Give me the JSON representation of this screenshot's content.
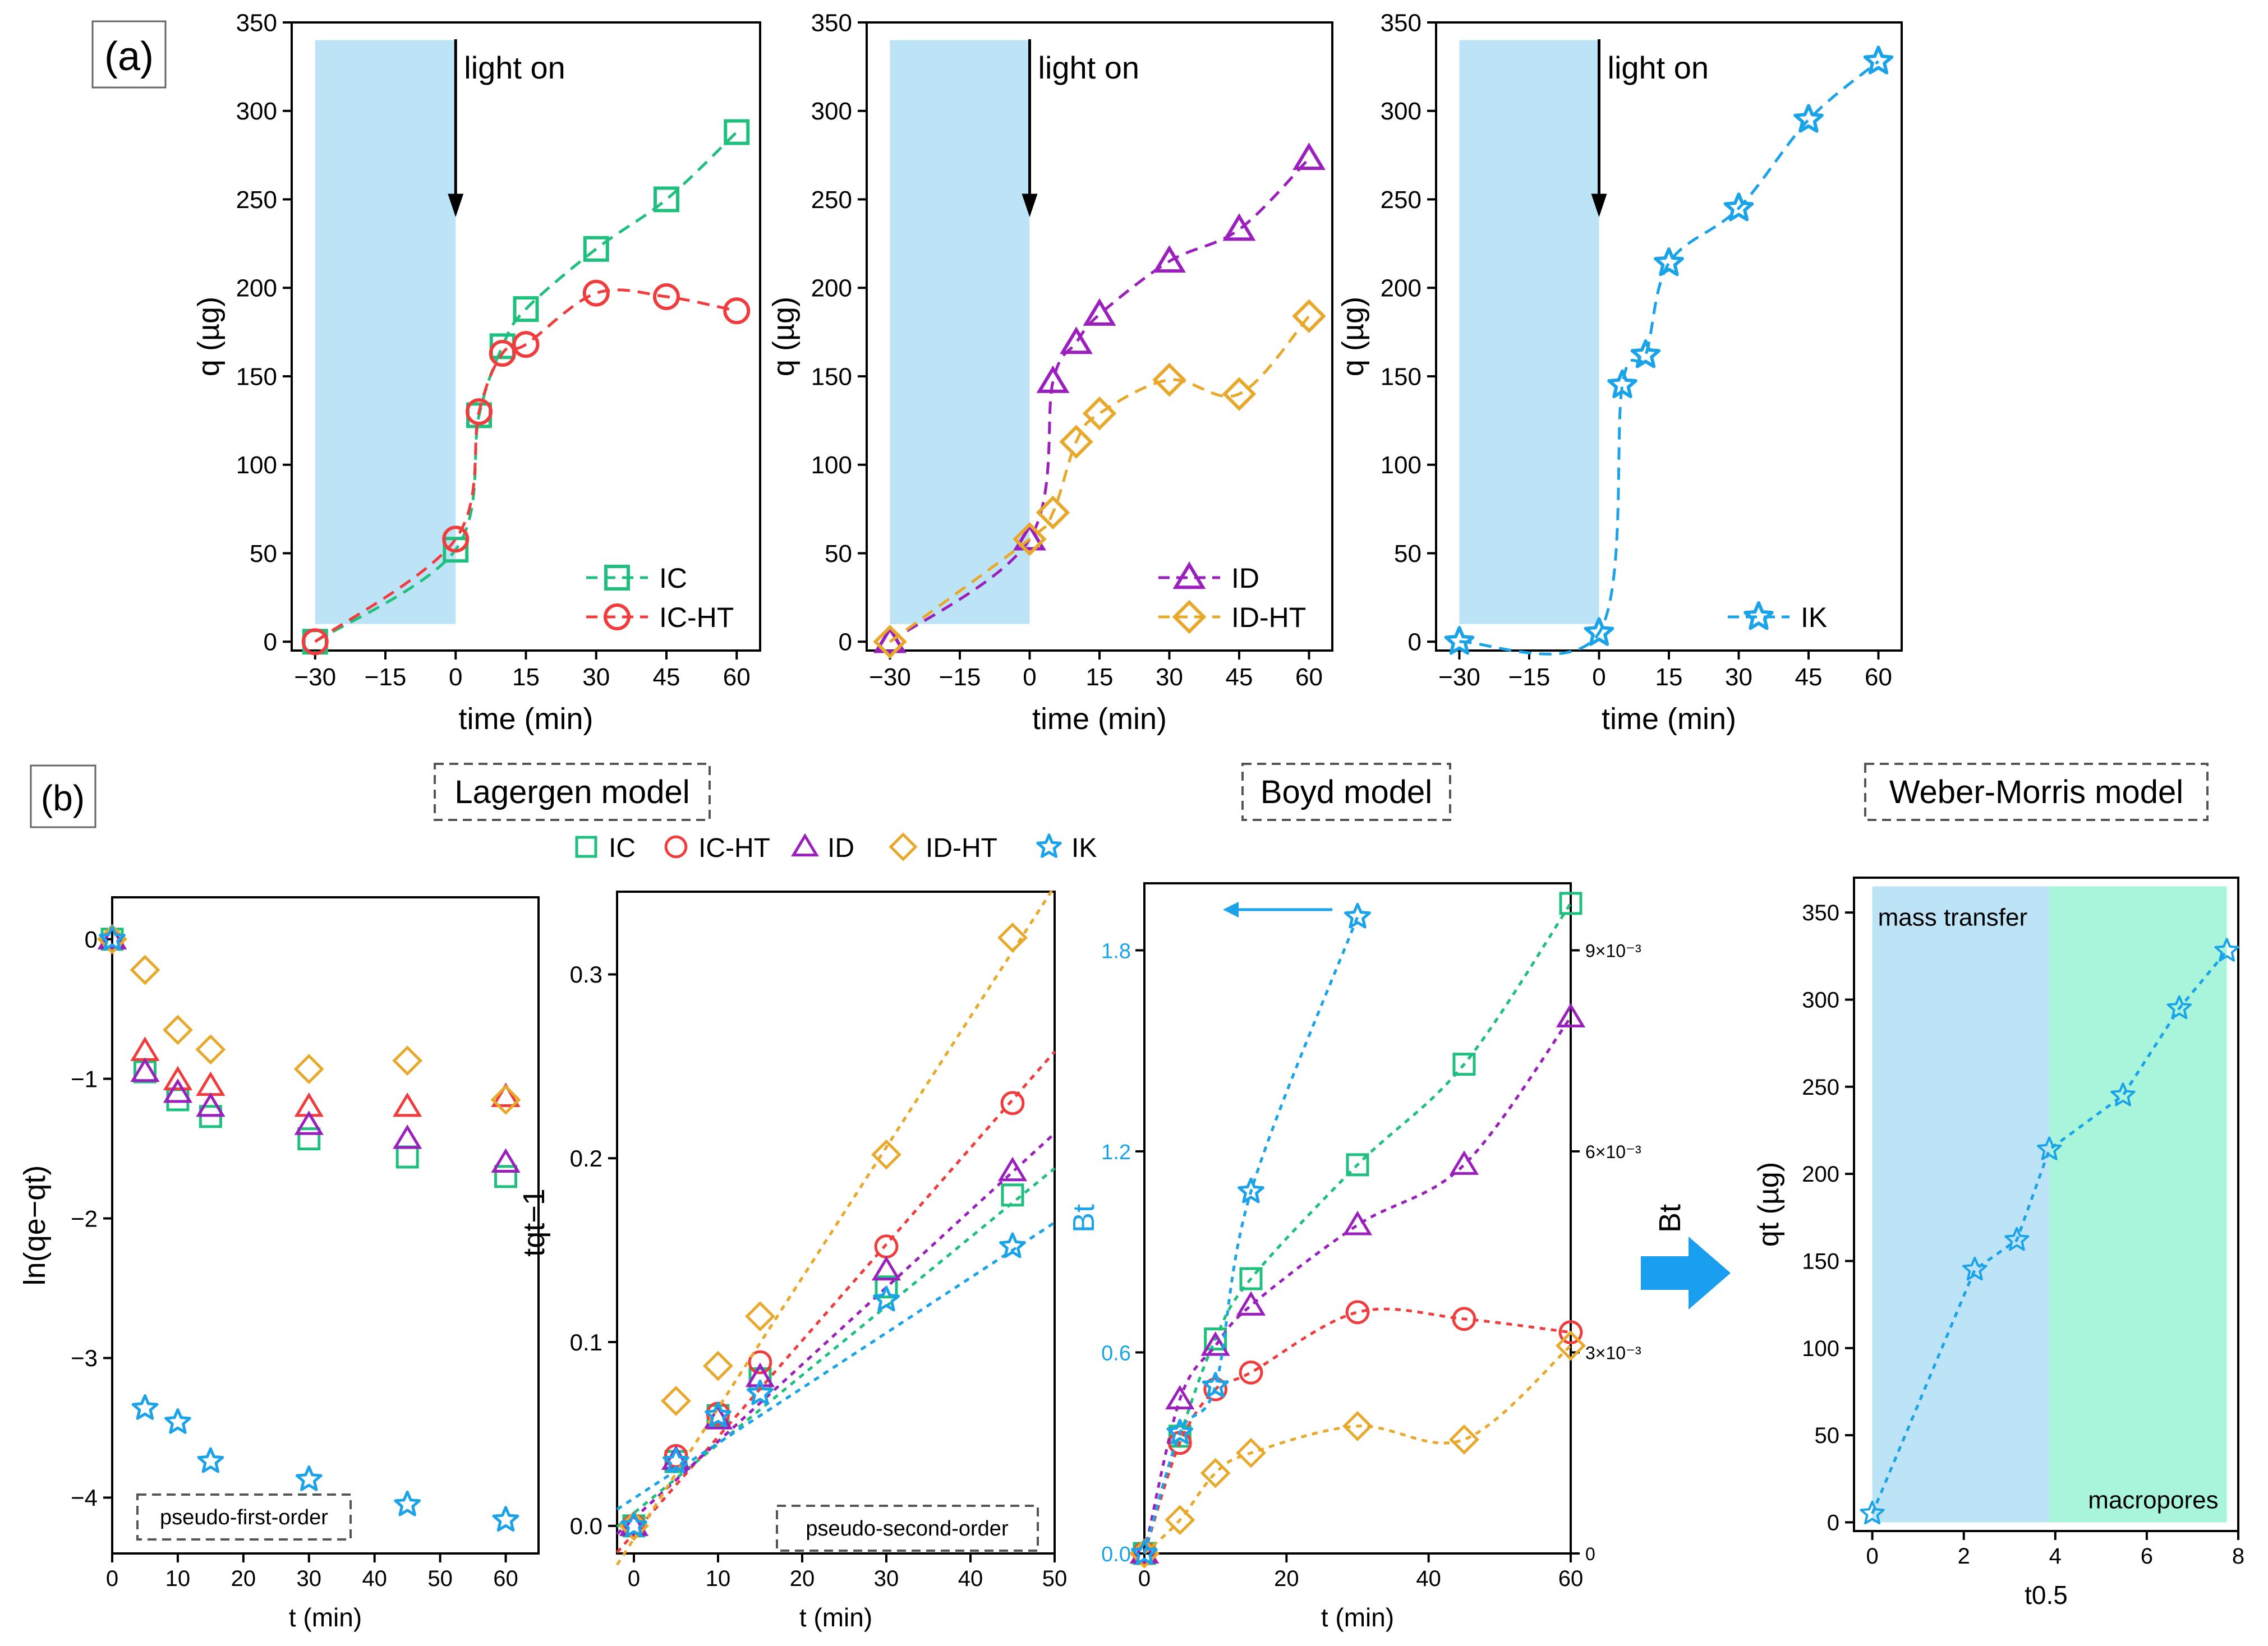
{
  "colors": {
    "IC": "#1fbf7e",
    "IC-HT": "#f03c3c",
    "ID": "#9a1fbd",
    "ID-HT": "#e8a92a",
    "IK": "#1aa3e8",
    "shade_blue": "#bde3f7",
    "shade_green": "#a9f5dc"
  },
  "panel_labels": {
    "a": "(a)",
    "b": "(b)"
  },
  "model_titles": {
    "lagergen": "Lagergen model",
    "boyd": "Boyd model",
    "weber": "Weber-Morris model"
  },
  "legend_top": [
    "IC",
    "IC-HT",
    "ID",
    "ID-HT",
    "IK"
  ],
  "chart_data": [
    {
      "id": "a1",
      "type": "line",
      "xlabel": "time (min)",
      "ylabel": "q (µg)",
      "xlim": [
        -35,
        65
      ],
      "ylim": [
        -5,
        350
      ],
      "xticks": [
        -30,
        -15,
        0,
        15,
        30,
        45,
        60
      ],
      "yticks": [
        0,
        50,
        100,
        150,
        200,
        250,
        300,
        350
      ],
      "annotation": "light on",
      "series": [
        {
          "name": "IC",
          "marker": "square",
          "x": [
            -30,
            0,
            5,
            10,
            15,
            30,
            45,
            60
          ],
          "y": [
            0,
            52,
            128,
            167,
            188,
            222,
            250,
            288
          ]
        },
        {
          "name": "IC-HT",
          "marker": "circle",
          "x": [
            -30,
            0,
            5,
            10,
            15,
            30,
            45,
            60
          ],
          "y": [
            0,
            58,
            130,
            163,
            168,
            197,
            195,
            187
          ]
        }
      ]
    },
    {
      "id": "a2",
      "type": "line",
      "xlabel": "time (min)",
      "ylabel": "q (µg)",
      "xlim": [
        -35,
        65
      ],
      "ylim": [
        -5,
        350
      ],
      "xticks": [
        -30,
        -15,
        0,
        15,
        30,
        45,
        60
      ],
      "yticks": [
        0,
        50,
        100,
        150,
        200,
        250,
        300,
        350
      ],
      "annotation": "light on",
      "series": [
        {
          "name": "ID",
          "marker": "triangle",
          "x": [
            -30,
            0,
            5,
            10,
            15,
            30,
            45,
            60
          ],
          "y": [
            0,
            58,
            147,
            169,
            185,
            215,
            233,
            273
          ]
        },
        {
          "name": "ID-HT",
          "marker": "diamond",
          "x": [
            -30,
            0,
            5,
            10,
            15,
            30,
            45,
            60
          ],
          "y": [
            0,
            58,
            73,
            113,
            129,
            148,
            140,
            184
          ]
        }
      ]
    },
    {
      "id": "a3",
      "type": "line",
      "xlabel": "time (min)",
      "ylabel": "q (µg)",
      "xlim": [
        -35,
        65
      ],
      "ylim": [
        -5,
        350
      ],
      "xticks": [
        -30,
        -15,
        0,
        15,
        30,
        45,
        60
      ],
      "yticks": [
        0,
        50,
        100,
        150,
        200,
        250,
        300,
        350
      ],
      "annotation": "light on",
      "series": [
        {
          "name": "IK",
          "marker": "star",
          "x": [
            -30,
            0,
            5,
            10,
            15,
            30,
            45,
            60
          ],
          "y": [
            0,
            5,
            145,
            162,
            214,
            245,
            295,
            328
          ]
        }
      ]
    },
    {
      "id": "b1",
      "type": "scatter",
      "xlabel": "t (min)",
      "ylabel": "ln(qe−qt)",
      "xlim": [
        0,
        65
      ],
      "ylim": [
        -4.4,
        0.3
      ],
      "xticks": [
        0,
        10,
        20,
        30,
        40,
        50,
        60
      ],
      "yticks": [
        0,
        -1,
        -2,
        -3,
        -4
      ],
      "box_label": "pseudo-first-order",
      "series": [
        {
          "name": "IC",
          "marker": "square",
          "x": [
            0,
            5,
            10,
            15,
            30,
            45,
            60
          ],
          "y": [
            0,
            -0.95,
            -1.15,
            -1.27,
            -1.43,
            -1.56,
            -1.7
          ]
        },
        {
          "name": "IC-HT",
          "marker": "triangle-red",
          "x": [
            0,
            5,
            10,
            15,
            30,
            45,
            60
          ],
          "y": [
            0,
            -0.8,
            -1.01,
            -1.05,
            -1.2,
            -1.2,
            -1.13
          ]
        },
        {
          "name": "ID",
          "marker": "triangle",
          "x": [
            0,
            5,
            10,
            15,
            30,
            45,
            60
          ],
          "y": [
            0,
            -0.95,
            -1.1,
            -1.2,
            -1.33,
            -1.43,
            -1.6
          ]
        },
        {
          "name": "ID-HT",
          "marker": "diamond",
          "x": [
            0,
            5,
            10,
            15,
            30,
            45,
            60
          ],
          "y": [
            0,
            -0.22,
            -0.65,
            -0.79,
            -0.93,
            -0.87,
            -1.15
          ]
        },
        {
          "name": "IK",
          "marker": "star",
          "x": [
            0,
            5,
            10,
            15,
            30,
            45,
            60
          ],
          "y": [
            0,
            -3.36,
            -3.46,
            -3.74,
            -3.87,
            -4.05,
            -4.16
          ]
        }
      ]
    },
    {
      "id": "b2",
      "type": "scatter",
      "xlabel": "t (min)",
      "ylabel": "tqt−1",
      "xlim": [
        -2,
        50
      ],
      "ylim": [
        -0.015,
        0.345
      ],
      "xticks": [
        0,
        10,
        20,
        30,
        40,
        50
      ],
      "yticks": [
        0.0,
        0.1,
        0.2,
        0.3
      ],
      "ytick_labels": [
        "0.0",
        "0.1",
        "0.2",
        "0.3"
      ],
      "box_label": "pseudo-second-order",
      "series": [
        {
          "name": "IC",
          "marker": "square",
          "x": [
            0,
            5,
            10,
            15,
            30,
            45
          ],
          "y": [
            0,
            0.035,
            0.06,
            0.08,
            0.13,
            0.18
          ],
          "fit": [
            0.007,
            0.00375
          ]
        },
        {
          "name": "IC-HT",
          "marker": "circle",
          "x": [
            0,
            5,
            10,
            15,
            30,
            45
          ],
          "y": [
            0,
            0.038,
            0.061,
            0.089,
            0.152,
            0.23
          ],
          "fit": [
            -0.004,
            0.00524
          ]
        },
        {
          "name": "ID",
          "marker": "triangle",
          "x": [
            0,
            5,
            10,
            15,
            30,
            45
          ],
          "y": [
            0,
            0.036,
            0.058,
            0.081,
            0.139,
            0.193
          ],
          "fit": [
            0.004,
            0.00419
          ]
        },
        {
          "name": "ID-HT",
          "marker": "diamond",
          "x": [
            0,
            5,
            10,
            15,
            30,
            45
          ],
          "y": [
            0,
            0.068,
            0.087,
            0.114,
            0.202,
            0.32
          ],
          "fit": [
            -0.007,
            0.0071
          ]
        },
        {
          "name": "IK",
          "marker": "star",
          "x": [
            0,
            5,
            10,
            15,
            30,
            45
          ],
          "y": [
            0,
            0.035,
            0.06,
            0.072,
            0.123,
            0.152
          ],
          "fit": [
            0.015,
            0.003
          ]
        }
      ]
    },
    {
      "id": "b3",
      "type": "line",
      "xlabel": "t (min)",
      "ylabel_left": "Bt",
      "ylabel_right": "Bt",
      "xlim": [
        0,
        60
      ],
      "ylim": [
        0,
        2.0
      ],
      "xticks": [
        0,
        20,
        40,
        60
      ],
      "yticks": [
        0.0,
        0.6,
        1.2,
        1.8
      ],
      "ytick_labels": [
        "0.0",
        "0.6",
        "1.2",
        "1.8"
      ],
      "ylim_right": [
        0,
        0.01
      ],
      "yticks_right": [
        0,
        0.003,
        0.006,
        0.009
      ],
      "ytick_labels_right": [
        "0",
        "3×10⁻³",
        "6×10⁻³",
        "9×10⁻³"
      ],
      "series": [
        {
          "name": "IC",
          "marker": "square",
          "axis": "right",
          "x": [
            0,
            5,
            10,
            15,
            30,
            45,
            60
          ],
          "y": [
            0,
            0.00175,
            0.0032,
            0.0041,
            0.0058,
            0.0073,
            0.0097
          ]
        },
        {
          "name": "IC-HT",
          "marker": "circle",
          "axis": "right",
          "x": [
            0,
            5,
            10,
            15,
            30,
            45,
            60
          ],
          "y": [
            0,
            0.00165,
            0.00245,
            0.0027,
            0.0036,
            0.0035,
            0.0033
          ]
        },
        {
          "name": "ID",
          "marker": "triangle",
          "axis": "right",
          "x": [
            0,
            5,
            10,
            15,
            30,
            45,
            60
          ],
          "y": [
            0,
            0.0023,
            0.0031,
            0.0037,
            0.0049,
            0.0058,
            0.008
          ]
        },
        {
          "name": "ID-HT",
          "marker": "diamond",
          "axis": "right",
          "x": [
            0,
            5,
            10,
            15,
            30,
            45,
            60
          ],
          "y": [
            0,
            0.0005,
            0.0012,
            0.0015,
            0.0019,
            0.0017,
            0.0031
          ]
        },
        {
          "name": "IK",
          "marker": "star",
          "axis": "left",
          "x": [
            0,
            5,
            10,
            15,
            30
          ],
          "y": [
            0,
            0.36,
            0.5,
            1.08,
            1.9
          ]
        }
      ]
    },
    {
      "id": "b4",
      "type": "line",
      "xlabel": "t0.5",
      "ylabel": "qt (µg)",
      "xlim": [
        -0.4,
        8.0
      ],
      "ylim": [
        -5,
        370
      ],
      "xticks": [
        0,
        2,
        4,
        6,
        8
      ],
      "yticks": [
        0,
        50,
        100,
        150,
        200,
        250,
        300,
        350
      ],
      "regions": [
        {
          "label": "mass transfer",
          "x0": 0,
          "x1": 3.87
        },
        {
          "label": "macropores",
          "x0": 3.87,
          "x1": 7.75
        }
      ],
      "series": [
        {
          "name": "IK",
          "marker": "star",
          "x": [
            0,
            2.24,
            3.16,
            3.87,
            5.48,
            6.71,
            7.75
          ],
          "y": [
            5,
            145,
            162,
            214,
            245,
            295,
            328
          ]
        }
      ]
    }
  ]
}
